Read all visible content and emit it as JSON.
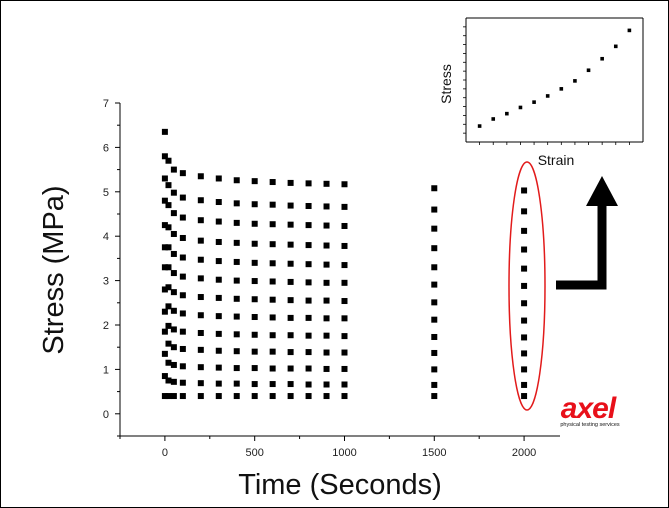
{
  "chart_data": [
    {
      "type": "scatter",
      "xlabel": "Time (Seconds)",
      "ylabel": "Stress (MPa)",
      "xlim": [
        -250,
        2200
      ],
      "ylim": [
        -0.5,
        7
      ],
      "xticks": [
        0,
        500,
        1000,
        1500,
        2000
      ],
      "yticks": [
        0,
        1,
        2,
        3,
        4,
        5,
        6,
        7
      ],
      "x": [
        0,
        20,
        50,
        100,
        200,
        300,
        400,
        500,
        600,
        700,
        800,
        900,
        1000,
        1500,
        2000
      ],
      "series": [
        {
          "values": [
            0.4,
            0.4,
            0.4,
            0.4,
            0.4,
            0.4,
            0.4,
            0.4,
            0.4,
            0.4,
            0.4,
            0.4,
            0.4,
            0.4,
            0.4
          ]
        },
        {
          "values": [
            0.85,
            0.75,
            0.72,
            0.7,
            0.69,
            0.68,
            0.68,
            0.67,
            0.67,
            0.67,
            0.66,
            0.66,
            0.66,
            0.65,
            0.65
          ]
        },
        {
          "values": [
            1.35,
            1.15,
            1.1,
            1.07,
            1.05,
            1.04,
            1.03,
            1.03,
            1.02,
            1.02,
            1.02,
            1.01,
            1.01,
            1.0,
            1.0
          ]
        },
        {
          "values": [
            1.85,
            1.58,
            1.5,
            1.46,
            1.44,
            1.42,
            1.41,
            1.4,
            1.4,
            1.39,
            1.39,
            1.38,
            1.38,
            1.37,
            1.36
          ]
        },
        {
          "values": [
            2.3,
            1.98,
            1.9,
            1.85,
            1.82,
            1.8,
            1.79,
            1.78,
            1.77,
            1.77,
            1.76,
            1.76,
            1.75,
            1.73,
            1.72
          ]
        },
        {
          "values": [
            2.8,
            2.42,
            2.32,
            2.26,
            2.22,
            2.2,
            2.19,
            2.18,
            2.17,
            2.16,
            2.16,
            2.15,
            2.15,
            2.12,
            2.1
          ]
        },
        {
          "values": [
            3.3,
            2.85,
            2.74,
            2.67,
            2.63,
            2.61,
            2.59,
            2.58,
            2.57,
            2.56,
            2.55,
            2.55,
            2.54,
            2.51,
            2.49
          ]
        },
        {
          "values": [
            3.75,
            3.3,
            3.17,
            3.09,
            3.05,
            3.02,
            3.0,
            2.99,
            2.98,
            2.97,
            2.96,
            2.95,
            2.95,
            2.91,
            2.88
          ]
        },
        {
          "values": [
            4.25,
            3.75,
            3.6,
            3.52,
            3.47,
            3.44,
            3.42,
            3.4,
            3.39,
            3.38,
            3.37,
            3.36,
            3.35,
            3.3,
            3.27
          ]
        },
        {
          "values": [
            4.8,
            4.2,
            4.05,
            3.96,
            3.9,
            3.87,
            3.85,
            3.83,
            3.82,
            3.81,
            3.8,
            3.79,
            3.78,
            3.73,
            3.7
          ]
        },
        {
          "values": [
            5.3,
            4.7,
            4.52,
            4.42,
            4.36,
            4.33,
            4.3,
            4.28,
            4.27,
            4.26,
            4.25,
            4.24,
            4.23,
            4.17,
            4.12
          ]
        },
        {
          "values": [
            5.8,
            5.15,
            4.98,
            4.87,
            4.81,
            4.77,
            4.74,
            4.72,
            4.71,
            4.69,
            4.68,
            4.67,
            4.66,
            4.6,
            4.56
          ]
        },
        {
          "values": [
            6.35,
            5.7,
            5.5,
            5.42,
            5.35,
            5.3,
            5.26,
            5.24,
            5.22,
            5.2,
            5.19,
            5.18,
            5.17,
            5.08,
            5.03
          ]
        }
      ],
      "grid": false
    },
    {
      "type": "scatter",
      "xlabel": "Strain",
      "ylabel": "Stress",
      "x": [
        1,
        2,
        3,
        4,
        5,
        6,
        7,
        8,
        9,
        10,
        11,
        12
      ],
      "values": [
        0.9,
        1.3,
        1.6,
        1.95,
        2.25,
        2.6,
        3.0,
        3.45,
        4.05,
        4.7,
        5.4,
        6.3
      ],
      "xlim": [
        0,
        13
      ],
      "ylim": [
        0,
        7
      ],
      "grid": false
    }
  ],
  "logo": {
    "text": "axel",
    "tagline": "physical testing services",
    "color": "#e8101a"
  },
  "annotation": {
    "highlight": "red ellipse around the t = 2000 s data points",
    "arrow": "black arrow pointing up toward the inset stress–strain plot",
    "ellipse_color": "#e21b1b"
  }
}
